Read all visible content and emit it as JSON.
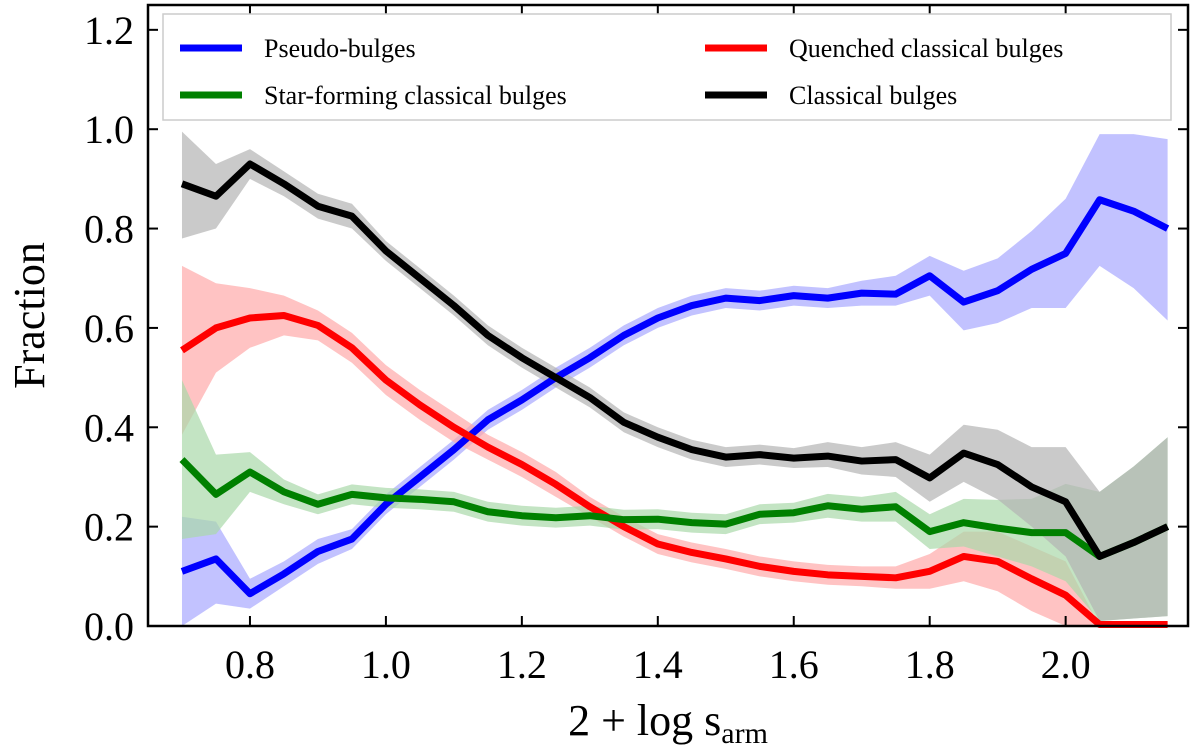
{
  "chart_data": {
    "type": "line",
    "title": "",
    "xlabel": "2 + log s",
    "xlabel_subscript": "arm",
    "ylabel": "Fraction",
    "xlim": [
      0.65,
      2.18
    ],
    "ylim": [
      0.0,
      1.25
    ],
    "xticks": [
      0.8,
      1.0,
      1.2,
      1.4,
      1.6,
      1.8,
      2.0
    ],
    "xtick_labels": [
      "0.8",
      "1.0",
      "1.2",
      "1.4",
      "1.6",
      "1.8",
      "2.0"
    ],
    "yticks": [
      0.0,
      0.2,
      0.4,
      0.6,
      0.8,
      1.0,
      1.2
    ],
    "ytick_labels": [
      "0.0",
      "0.2",
      "0.4",
      "0.6",
      "0.8",
      "1.0",
      "1.2"
    ],
    "grid": false,
    "legend_position": "top",
    "x": [
      0.7,
      0.75,
      0.8,
      0.85,
      0.9,
      0.95,
      1.0,
      1.05,
      1.1,
      1.15,
      1.2,
      1.25,
      1.3,
      1.35,
      1.4,
      1.45,
      1.5,
      1.55,
      1.6,
      1.65,
      1.7,
      1.75,
      1.8,
      1.85,
      1.9,
      1.95,
      2.0,
      2.05,
      2.1,
      2.15
    ],
    "series": [
      {
        "name": "Pseudo-bulges",
        "color": "#0000ff",
        "band_color": "#a8a8ff",
        "values": [
          0.11,
          0.135,
          0.065,
          0.105,
          0.15,
          0.175,
          0.245,
          0.3,
          0.355,
          0.415,
          0.455,
          0.5,
          0.54,
          0.585,
          0.62,
          0.645,
          0.66,
          0.655,
          0.665,
          0.66,
          0.67,
          0.668,
          0.705,
          0.652,
          0.675,
          0.718,
          0.75,
          0.858,
          0.835,
          0.8
        ],
        "lower": [
          0.0,
          0.045,
          0.035,
          0.08,
          0.125,
          0.155,
          0.225,
          0.28,
          0.335,
          0.395,
          0.435,
          0.48,
          0.52,
          0.565,
          0.6,
          0.625,
          0.64,
          0.635,
          0.645,
          0.64,
          0.645,
          0.645,
          0.665,
          0.595,
          0.61,
          0.64,
          0.64,
          0.725,
          0.68,
          0.615
        ],
        "upper": [
          0.22,
          0.21,
          0.095,
          0.13,
          0.175,
          0.195,
          0.265,
          0.32,
          0.375,
          0.435,
          0.475,
          0.52,
          0.56,
          0.605,
          0.64,
          0.665,
          0.68,
          0.675,
          0.685,
          0.68,
          0.695,
          0.705,
          0.745,
          0.715,
          0.74,
          0.795,
          0.86,
          0.99,
          0.99,
          0.98
        ]
      },
      {
        "name": "Quenched classical bulges",
        "color": "#ff0000",
        "band_color": "#ffaaaa",
        "values": [
          0.555,
          0.6,
          0.62,
          0.625,
          0.605,
          0.56,
          0.495,
          0.445,
          0.4,
          0.36,
          0.325,
          0.285,
          0.24,
          0.2,
          0.165,
          0.148,
          0.135,
          0.12,
          0.11,
          0.103,
          0.1,
          0.097,
          0.11,
          0.14,
          0.13,
          0.095,
          0.062,
          0.003,
          0.003,
          0.003
        ],
        "lower": [
          0.385,
          0.51,
          0.56,
          0.585,
          0.575,
          0.53,
          0.465,
          0.415,
          0.37,
          0.335,
          0.3,
          0.26,
          0.22,
          0.18,
          0.145,
          0.128,
          0.115,
          0.1,
          0.09,
          0.083,
          0.08,
          0.075,
          0.075,
          0.09,
          0.07,
          0.03,
          0.0,
          0.0,
          0.0,
          0.0
        ],
        "upper": [
          0.725,
          0.69,
          0.68,
          0.665,
          0.635,
          0.59,
          0.525,
          0.475,
          0.43,
          0.385,
          0.35,
          0.31,
          0.26,
          0.22,
          0.185,
          0.168,
          0.155,
          0.14,
          0.13,
          0.123,
          0.12,
          0.12,
          0.145,
          0.19,
          0.19,
          0.16,
          0.13,
          0.0,
          0.0,
          0.0
        ]
      },
      {
        "name": "Star-forming classical bulges",
        "color": "#008000",
        "band_color": "#a9d9a9",
        "values": [
          0.335,
          0.265,
          0.31,
          0.27,
          0.245,
          0.265,
          0.258,
          0.255,
          0.25,
          0.23,
          0.222,
          0.218,
          0.222,
          0.214,
          0.215,
          0.208,
          0.205,
          0.225,
          0.228,
          0.242,
          0.235,
          0.24,
          0.19,
          0.208,
          0.197,
          0.188,
          0.188,
          0.14,
          0.168,
          0.2
        ],
        "lower": [
          0.175,
          0.185,
          0.27,
          0.245,
          0.225,
          0.245,
          0.238,
          0.235,
          0.23,
          0.21,
          0.202,
          0.198,
          0.202,
          0.194,
          0.195,
          0.188,
          0.185,
          0.205,
          0.208,
          0.218,
          0.21,
          0.21,
          0.155,
          0.16,
          0.14,
          0.12,
          0.09,
          0.01,
          0.015,
          0.02
        ],
        "upper": [
          0.495,
          0.345,
          0.35,
          0.295,
          0.265,
          0.285,
          0.278,
          0.275,
          0.27,
          0.25,
          0.242,
          0.238,
          0.242,
          0.234,
          0.235,
          0.228,
          0.225,
          0.245,
          0.248,
          0.266,
          0.26,
          0.27,
          0.225,
          0.256,
          0.254,
          0.256,
          0.286,
          0.27,
          0.321,
          0.38
        ]
      },
      {
        "name": "Classical bulges",
        "color": "#000000",
        "band_color": "#b3b3b3",
        "values": [
          0.89,
          0.865,
          0.93,
          0.89,
          0.845,
          0.825,
          0.755,
          0.7,
          0.645,
          0.585,
          0.54,
          0.5,
          0.46,
          0.41,
          0.38,
          0.355,
          0.34,
          0.345,
          0.338,
          0.342,
          0.332,
          0.335,
          0.298,
          0.348,
          0.325,
          0.28,
          0.25,
          0.14,
          0.168,
          0.2
        ],
        "lower": [
          0.78,
          0.8,
          0.9,
          0.865,
          0.82,
          0.8,
          0.735,
          0.68,
          0.625,
          0.565,
          0.52,
          0.48,
          0.44,
          0.39,
          0.36,
          0.335,
          0.32,
          0.325,
          0.318,
          0.32,
          0.305,
          0.3,
          0.25,
          0.29,
          0.255,
          0.2,
          0.14,
          0.01,
          0.015,
          0.02
        ],
        "upper": [
          0.995,
          0.93,
          0.96,
          0.915,
          0.87,
          0.85,
          0.775,
          0.72,
          0.665,
          0.605,
          0.56,
          0.52,
          0.48,
          0.43,
          0.4,
          0.375,
          0.36,
          0.365,
          0.358,
          0.37,
          0.36,
          0.37,
          0.345,
          0.405,
          0.395,
          0.36,
          0.36,
          0.27,
          0.321,
          0.38
        ]
      }
    ],
    "legend": {
      "items": [
        {
          "label": "Pseudo-bulges",
          "color": "#0000ff"
        },
        {
          "label": "Star-forming classical bulges",
          "color": "#008000"
        },
        {
          "label": "Quenched classical bulges",
          "color": "#ff0000"
        },
        {
          "label": "Classical bulges",
          "color": "#000000"
        }
      ]
    }
  }
}
